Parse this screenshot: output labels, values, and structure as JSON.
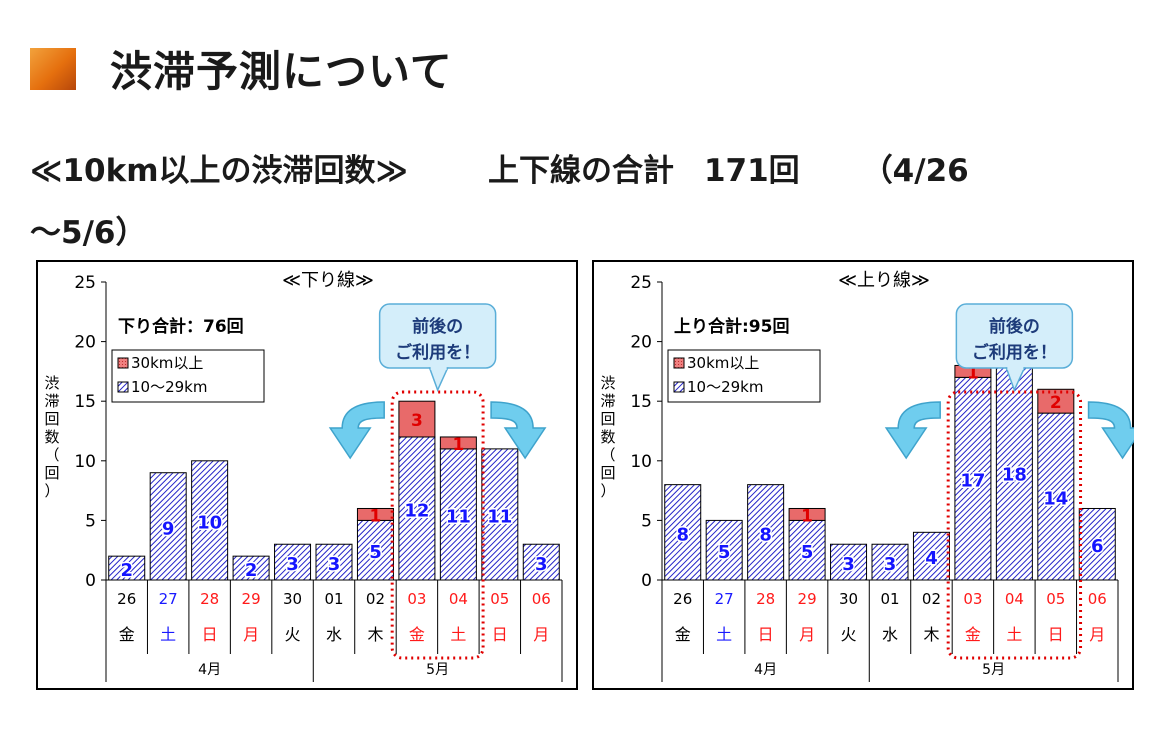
{
  "heading": "渋滞予測について",
  "subtitle": {
    "part1": "≪10km以上の渋滞回数≫",
    "part2": "上下線の合計",
    "part3": "171回",
    "part4": "（4/26",
    "part5": "〜5/6）"
  },
  "colors": {
    "accent": "#e56f0e",
    "hatch_blue": "#2424c8",
    "red_segment": "#e86a6a",
    "callout_fill": "#d4eefa",
    "arrow_fill": "#6fcdee",
    "dotted_red": "#e00000"
  },
  "chart_data": [
    {
      "type": "bar",
      "title": "≪下り線≫",
      "total_label": "下り合計：76回",
      "ylabel": "渋滞回数（回）",
      "ylim": [
        0,
        25
      ],
      "yticks": [
        0,
        5,
        10,
        15,
        20,
        25
      ],
      "grid": false,
      "stacked": true,
      "legend": {
        "position": "left",
        "entries": [
          "30km以上",
          "10〜29km"
        ]
      },
      "categories": [
        "26",
        "27",
        "28",
        "29",
        "30",
        "01",
        "02",
        "03",
        "04",
        "05",
        "06"
      ],
      "weekdays": [
        "金",
        "土",
        "日",
        "月",
        "火",
        "水",
        "木",
        "金",
        "土",
        "日",
        "月"
      ],
      "day_colors": [
        "black",
        "blue",
        "red",
        "red",
        "black",
        "black",
        "black",
        "red",
        "red",
        "red",
        "red"
      ],
      "months": [
        "4月",
        "5月"
      ],
      "series": [
        {
          "name": "10〜29km",
          "values": [
            2,
            9,
            10,
            2,
            3,
            3,
            5,
            12,
            11,
            11,
            3
          ]
        },
        {
          "name": "30km以上",
          "values": [
            0,
            0,
            0,
            0,
            0,
            0,
            1,
            3,
            1,
            0,
            0
          ]
        }
      ],
      "callout": "前後の\nご利用を！",
      "highlight_days": [
        "03",
        "04"
      ]
    },
    {
      "type": "bar",
      "title": "≪上り線≫",
      "total_label": "上り合計:95回",
      "ylabel": "渋滞回数（回）",
      "ylim": [
        0,
        25
      ],
      "yticks": [
        0,
        5,
        10,
        15,
        20,
        25
      ],
      "grid": false,
      "stacked": true,
      "legend": {
        "position": "left",
        "entries": [
          "30km以上",
          "10〜29km"
        ]
      },
      "categories": [
        "26",
        "27",
        "28",
        "29",
        "30",
        "01",
        "02",
        "03",
        "04",
        "05",
        "06"
      ],
      "weekdays": [
        "金",
        "土",
        "日",
        "月",
        "火",
        "水",
        "木",
        "金",
        "土",
        "日",
        "月"
      ],
      "day_colors": [
        "black",
        "blue",
        "red",
        "red",
        "black",
        "black",
        "black",
        "red",
        "red",
        "red",
        "red"
      ],
      "months": [
        "4月",
        "5月"
      ],
      "series": [
        {
          "name": "10〜29km",
          "values": [
            8,
            5,
            8,
            5,
            3,
            3,
            4,
            17,
            18,
            14,
            6
          ]
        },
        {
          "name": "30km以上",
          "values": [
            0,
            0,
            0,
            1,
            0,
            0,
            0,
            1,
            0,
            2,
            0
          ]
        }
      ],
      "callout": "前後の\nご利用を！",
      "highlight_days": [
        "03",
        "04",
        "05"
      ]
    }
  ]
}
